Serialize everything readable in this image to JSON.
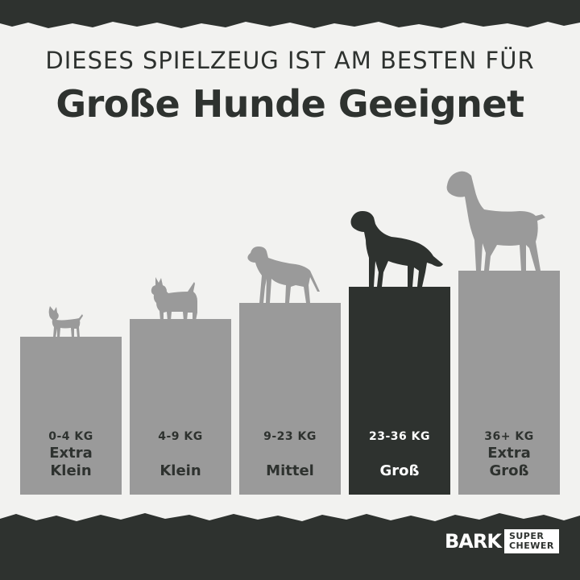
{
  "header": {
    "headline": "DIESES SPIELZEUG IST AM BESTEN FÜR",
    "title": "Große Hunde Geeignet"
  },
  "sizes": [
    {
      "weight": "0-4 KG",
      "label_line1": "Extra",
      "label_line2": "Klein",
      "highlighted": false
    },
    {
      "weight": "4-9 KG",
      "label_line1": "Klein",
      "label_line2": "",
      "highlighted": false
    },
    {
      "weight": "9-23 KG",
      "label_line1": "Mittel",
      "label_line2": "",
      "highlighted": false
    },
    {
      "weight": "23-36 KG",
      "label_line1": "Groß",
      "label_line2": "",
      "highlighted": true
    },
    {
      "weight": "36+ KG",
      "label_line1": "Extra",
      "label_line2": "Groß",
      "highlighted": false
    }
  ],
  "logo": {
    "brand": "BARK",
    "sub_line1": "SUPER",
    "sub_line2": "CHEWER"
  },
  "colors": {
    "background": "#f2f2f0",
    "dark": "#2e322f",
    "gray": "#9a9a9a"
  }
}
